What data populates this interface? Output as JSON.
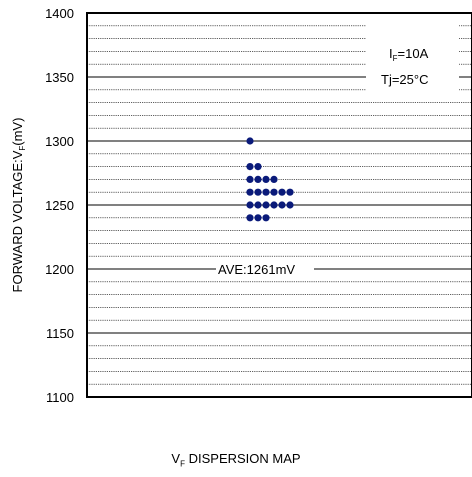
{
  "chart_data": {
    "type": "scatter",
    "title": "",
    "ylabel_parts": {
      "pre": "FORWARD VOLTAGE:V",
      "sub": "F",
      "post": "(mV)"
    },
    "xlabel_parts": {
      "pre": "V",
      "sub": "F",
      "post": " DISPERSION MAP"
    },
    "ylim": [
      1100,
      1400
    ],
    "yticks": [
      1100,
      1150,
      1200,
      1250,
      1300,
      1350,
      1400
    ],
    "minor_step": 10,
    "grid": true,
    "condition": {
      "if_pre": "I",
      "if_sub": "F",
      "if_post": "=10A",
      "tj": "Tj=25°C"
    },
    "average_label": "AVE:1261mV",
    "average_value": 1261,
    "point_color": "#0a1a7a",
    "points": [
      {
        "y": 1300,
        "count": 1
      },
      {
        "y": 1280,
        "count": 2
      },
      {
        "y": 1270,
        "count": 4
      },
      {
        "y": 1260,
        "count": 6
      },
      {
        "y": 1250,
        "count": 6
      },
      {
        "y": 1240,
        "count": 3
      }
    ]
  }
}
